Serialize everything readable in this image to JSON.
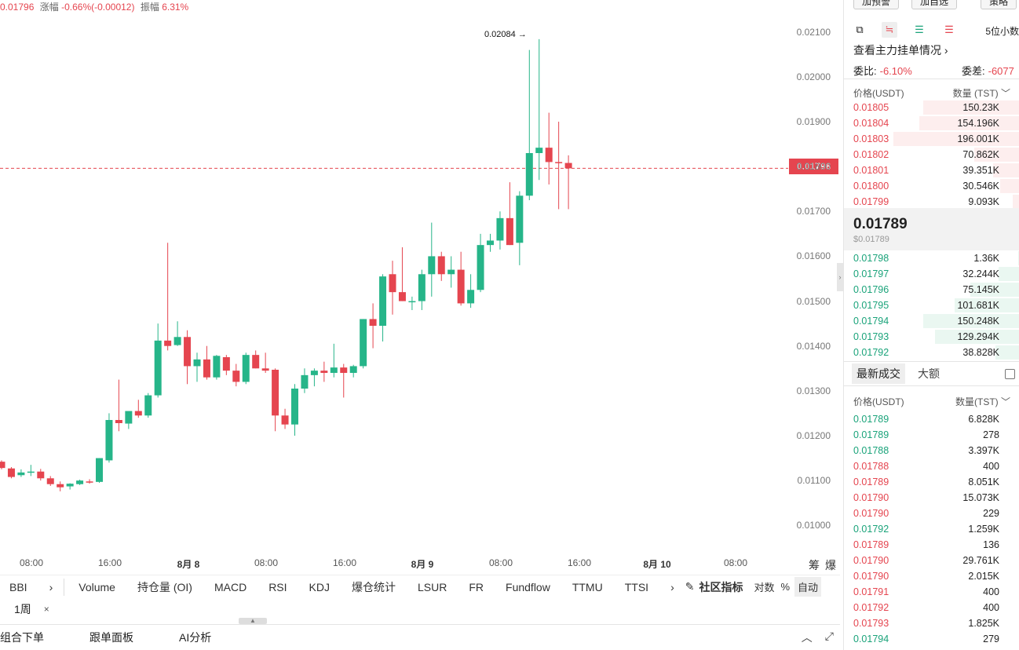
{
  "stats": {
    "price": "0.01796",
    "change_label": "涨幅",
    "change": "-0.66%(-0.00012)",
    "amp_label": "振幅",
    "amp": "6.31%"
  },
  "chart": {
    "y_ticks": [
      "0.02100",
      "0.02000",
      "0.01900",
      "0.01800",
      "0.01700",
      "0.01600",
      "0.01500",
      "0.01400",
      "0.01300",
      "0.01200",
      "0.01100",
      "0.01000"
    ],
    "x_ticks": [
      {
        "label": "08:00",
        "bold": false
      },
      {
        "label": "16:00",
        "bold": false
      },
      {
        "label": "8月 8",
        "bold": true
      },
      {
        "label": "08:00",
        "bold": false
      },
      {
        "label": "16:00",
        "bold": false
      },
      {
        "label": "8月 9",
        "bold": true
      },
      {
        "label": "08:00",
        "bold": false
      },
      {
        "label": "16:00",
        "bold": false
      },
      {
        "label": "8月 10",
        "bold": true
      },
      {
        "label": "08:00",
        "bold": false
      }
    ],
    "current_price_tag": "0.01796",
    "peak_label": "0.02084",
    "side_btns": [
      "筹",
      "爆"
    ],
    "colors": {
      "up": "#26b589",
      "down": "#e5454f"
    }
  },
  "chart_data": {
    "type": "candlestick",
    "ylim": [
      0.0095,
      0.0213
    ],
    "candles": [
      {
        "o": 0.01142,
        "h": 0.01145,
        "l": 0.01125,
        "c": 0.01128
      },
      {
        "o": 0.01127,
        "h": 0.0113,
        "l": 0.01105,
        "c": 0.01108
      },
      {
        "o": 0.01112,
        "h": 0.01125,
        "l": 0.01108,
        "c": 0.01118
      },
      {
        "o": 0.01118,
        "h": 0.01135,
        "l": 0.0111,
        "c": 0.0112
      },
      {
        "o": 0.0112,
        "h": 0.01126,
        "l": 0.011,
        "c": 0.01105
      },
      {
        "o": 0.01105,
        "h": 0.0111,
        "l": 0.01088,
        "c": 0.01092
      },
      {
        "o": 0.01092,
        "h": 0.01098,
        "l": 0.01076,
        "c": 0.01085
      },
      {
        "o": 0.01087,
        "h": 0.01094,
        "l": 0.0108,
        "c": 0.01093
      },
      {
        "o": 0.01092,
        "h": 0.01102,
        "l": 0.0109,
        "c": 0.011
      },
      {
        "o": 0.01098,
        "h": 0.01103,
        "l": 0.01093,
        "c": 0.01096
      },
      {
        "o": 0.01097,
        "h": 0.0115,
        "l": 0.01095,
        "c": 0.0115
      },
      {
        "o": 0.01145,
        "h": 0.0125,
        "l": 0.0114,
        "c": 0.01235
      },
      {
        "o": 0.01235,
        "h": 0.01325,
        "l": 0.0121,
        "c": 0.01228
      },
      {
        "o": 0.01227,
        "h": 0.0125,
        "l": 0.01215,
        "c": 0.01255
      },
      {
        "o": 0.01255,
        "h": 0.0128,
        "l": 0.0124,
        "c": 0.01245
      },
      {
        "o": 0.01245,
        "h": 0.01295,
        "l": 0.0124,
        "c": 0.0129
      },
      {
        "o": 0.0129,
        "h": 0.0145,
        "l": 0.01285,
        "c": 0.01412
      },
      {
        "o": 0.01412,
        "h": 0.0163,
        "l": 0.0139,
        "c": 0.014
      },
      {
        "o": 0.01402,
        "h": 0.01455,
        "l": 0.014,
        "c": 0.0142
      },
      {
        "o": 0.0142,
        "h": 0.01435,
        "l": 0.01315,
        "c": 0.01355
      },
      {
        "o": 0.01355,
        "h": 0.01385,
        "l": 0.0132,
        "c": 0.0137
      },
      {
        "o": 0.0137,
        "h": 0.014,
        "l": 0.01325,
        "c": 0.0133
      },
      {
        "o": 0.0133,
        "h": 0.0138,
        "l": 0.01325,
        "c": 0.01378
      },
      {
        "o": 0.01375,
        "h": 0.0138,
        "l": 0.01335,
        "c": 0.01345
      },
      {
        "o": 0.01345,
        "h": 0.0136,
        "l": 0.0131,
        "c": 0.0132
      },
      {
        "o": 0.0132,
        "h": 0.01385,
        "l": 0.01315,
        "c": 0.0138
      },
      {
        "o": 0.0138,
        "h": 0.0139,
        "l": 0.0135,
        "c": 0.0135
      },
      {
        "o": 0.0135,
        "h": 0.01385,
        "l": 0.0134,
        "c": 0.01345
      },
      {
        "o": 0.01347,
        "h": 0.0135,
        "l": 0.0121,
        "c": 0.01245
      },
      {
        "o": 0.01245,
        "h": 0.0126,
        "l": 0.01215,
        "c": 0.01225
      },
      {
        "o": 0.01225,
        "h": 0.01315,
        "l": 0.012,
        "c": 0.01305
      },
      {
        "o": 0.01305,
        "h": 0.0135,
        "l": 0.01295,
        "c": 0.01335
      },
      {
        "o": 0.01335,
        "h": 0.0135,
        "l": 0.0131,
        "c": 0.01345
      },
      {
        "o": 0.01345,
        "h": 0.01365,
        "l": 0.0132,
        "c": 0.0134
      },
      {
        "o": 0.0134,
        "h": 0.01405,
        "l": 0.0133,
        "c": 0.01352
      },
      {
        "o": 0.01352,
        "h": 0.0136,
        "l": 0.01285,
        "c": 0.0134
      },
      {
        "o": 0.0134,
        "h": 0.01358,
        "l": 0.0133,
        "c": 0.01355
      },
      {
        "o": 0.01355,
        "h": 0.0146,
        "l": 0.0135,
        "c": 0.0146
      },
      {
        "o": 0.0146,
        "h": 0.01495,
        "l": 0.01395,
        "c": 0.01445
      },
      {
        "o": 0.01445,
        "h": 0.0156,
        "l": 0.0141,
        "c": 0.01555
      },
      {
        "o": 0.0156,
        "h": 0.0159,
        "l": 0.0147,
        "c": 0.0152
      },
      {
        "o": 0.0152,
        "h": 0.0162,
        "l": 0.015,
        "c": 0.015
      },
      {
        "o": 0.015,
        "h": 0.0151,
        "l": 0.0148,
        "c": 0.015
      },
      {
        "o": 0.015,
        "h": 0.0157,
        "l": 0.0148,
        "c": 0.0156
      },
      {
        "o": 0.0156,
        "h": 0.01675,
        "l": 0.0151,
        "c": 0.016
      },
      {
        "o": 0.016,
        "h": 0.0161,
        "l": 0.01545,
        "c": 0.0156
      },
      {
        "o": 0.0156,
        "h": 0.016,
        "l": 0.0153,
        "c": 0.0157
      },
      {
        "o": 0.0157,
        "h": 0.0161,
        "l": 0.0149,
        "c": 0.01495
      },
      {
        "o": 0.01495,
        "h": 0.0156,
        "l": 0.01485,
        "c": 0.01525
      },
      {
        "o": 0.01525,
        "h": 0.0165,
        "l": 0.0152,
        "c": 0.01625
      },
      {
        "o": 0.01625,
        "h": 0.0165,
        "l": 0.0161,
        "c": 0.01635
      },
      {
        "o": 0.01635,
        "h": 0.017,
        "l": 0.01615,
        "c": 0.01685
      },
      {
        "o": 0.01685,
        "h": 0.01765,
        "l": 0.01625,
        "c": 0.01625
      },
      {
        "o": 0.0163,
        "h": 0.01745,
        "l": 0.0158,
        "c": 0.01735
      },
      {
        "o": 0.01735,
        "h": 0.0206,
        "l": 0.01725,
        "c": 0.0183
      },
      {
        "o": 0.0183,
        "h": 0.02084,
        "l": 0.0177,
        "c": 0.01842
      },
      {
        "o": 0.01842,
        "h": 0.0192,
        "l": 0.0176,
        "c": 0.0181
      },
      {
        "o": 0.0181,
        "h": 0.019,
        "l": 0.01705,
        "c": 0.01808
      },
      {
        "o": 0.01808,
        "h": 0.01825,
        "l": 0.01705,
        "c": 0.01796
      }
    ]
  },
  "indicators": {
    "items": [
      "BBI",
      "›",
      "|",
      "Volume",
      "持仓量 (OI)",
      "MACD",
      "RSI",
      "KDJ",
      "爆仓统计",
      "LSUR",
      "FR",
      "Fundflow",
      "TTMU",
      "TTSI",
      "›"
    ],
    "community": "社区指标",
    "log": "对数",
    "pct": "%",
    "auto": "自动"
  },
  "period": {
    "label": "1周",
    "close": "×"
  },
  "bottom": {
    "tabs": [
      "组合下单",
      "跟单面板",
      "AI分析"
    ],
    "up_icon": "︿",
    "expand_icon": "⤢"
  },
  "panel": {
    "top_btns": [
      "加预警",
      "加自选",
      "策略"
    ],
    "decimals": "5位小数",
    "mainforce": "查看主力挂单情况 ›",
    "ratio_label": "委比:",
    "ratio": "-6.10%",
    "diff_label": "委差:",
    "diff": "-6077",
    "book_price_head": "价格(USDT)",
    "book_qty_head": "数量 (TST) ﹀",
    "asks": [
      {
        "p": "0.01805",
        "q": "150.23K",
        "w": 0.55
      },
      {
        "p": "0.01804",
        "q": "154.196K",
        "w": 0.57
      },
      {
        "p": "0.01803",
        "q": "196.001K",
        "w": 0.72
      },
      {
        "p": "0.01802",
        "q": "70.862K",
        "w": 0.26
      },
      {
        "p": "0.01801",
        "q": "39.351K",
        "w": 0.15
      },
      {
        "p": "0.01800",
        "q": "30.546K",
        "w": 0.11
      },
      {
        "p": "0.01799",
        "q": "9.093K",
        "w": 0.04
      }
    ],
    "last": "0.01789",
    "last_usd": "$0.01789",
    "bids": [
      {
        "p": "0.01798",
        "q": "1.36K",
        "w": 0.01
      },
      {
        "p": "0.01797",
        "q": "32.244K",
        "w": 0.12
      },
      {
        "p": "0.01796",
        "q": "75.145K",
        "w": 0.28
      },
      {
        "p": "0.01795",
        "q": "101.681K",
        "w": 0.37
      },
      {
        "p": "0.01794",
        "q": "150.248K",
        "w": 0.55
      },
      {
        "p": "0.01793",
        "q": "129.294K",
        "w": 0.48
      },
      {
        "p": "0.01792",
        "q": "38.828K",
        "w": 0.14
      }
    ],
    "trade_tab1": "最新成交",
    "trade_tab2": "大额",
    "trade_price_head": "价格(USDT)",
    "trade_qty_head": "数量(TST) ﹀",
    "trades": [
      {
        "p": "0.01789",
        "q": "6.828K",
        "side": "buy"
      },
      {
        "p": "0.01789",
        "q": "278",
        "side": "buy"
      },
      {
        "p": "0.01788",
        "q": "3.397K",
        "side": "buy"
      },
      {
        "p": "0.01788",
        "q": "400",
        "side": "sell"
      },
      {
        "p": "0.01789",
        "q": "8.051K",
        "side": "sell"
      },
      {
        "p": "0.01790",
        "q": "15.073K",
        "side": "sell"
      },
      {
        "p": "0.01790",
        "q": "229",
        "side": "sell"
      },
      {
        "p": "0.01792",
        "q": "1.259K",
        "side": "buy"
      },
      {
        "p": "0.01789",
        "q": "136",
        "side": "sell"
      },
      {
        "p": "0.01790",
        "q": "29.761K",
        "side": "sell"
      },
      {
        "p": "0.01790",
        "q": "2.015K",
        "side": "sell"
      },
      {
        "p": "0.01791",
        "q": "400",
        "side": "sell"
      },
      {
        "p": "0.01792",
        "q": "400",
        "side": "sell"
      },
      {
        "p": "0.01793",
        "q": "1.825K",
        "side": "sell"
      },
      {
        "p": "0.01794",
        "q": "279",
        "side": "buy"
      }
    ]
  }
}
